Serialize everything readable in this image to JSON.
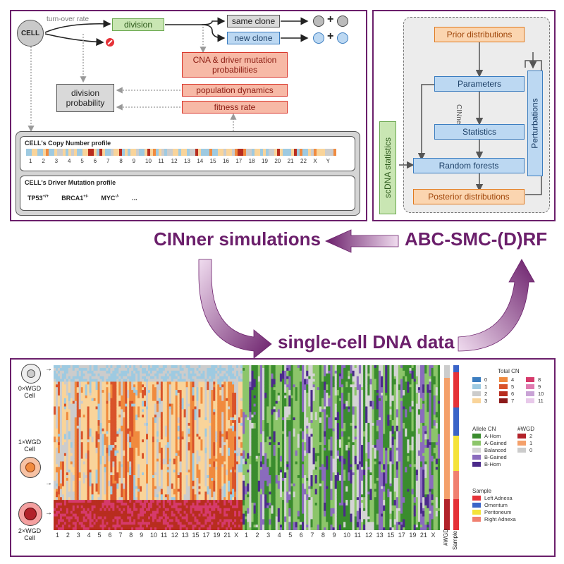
{
  "cinner_panel": {
    "cell_label": "CELL",
    "turnover_label": "turn-over rate",
    "division_label": "division",
    "same_clone_label": "same clone",
    "new_clone_label": "new clone",
    "plus_symbol": "+",
    "cna_label": "CNA & driver mutation probabilities",
    "population_label": "population dynamics",
    "fitness_label": "fitness rate",
    "division_probability_label": "division probability",
    "copy_number_title": "CELL's Copy Number profile",
    "chromosomes": [
      "1",
      "2",
      "3",
      "4",
      "5",
      "6",
      "7",
      "8",
      "9",
      "10",
      "11",
      "12",
      "13",
      "14",
      "15",
      "16",
      "17",
      "18",
      "19",
      "20",
      "21",
      "22",
      "X",
      "Y"
    ],
    "driver_title": "CELL's Driver Mutation profile",
    "driver_genes": [
      {
        "gene": "TP53",
        "sup": "+/+"
      },
      {
        "gene": "BRCA1",
        "sup": "+/-"
      },
      {
        "gene": "MYC",
        "sup": "-/-"
      }
    ],
    "ellipsis": "..."
  },
  "abc_panel": {
    "prior_label": "Prior distributions",
    "parameters_label": "Parameters",
    "cinner_vertical": "CINner",
    "statistics_label": "Statistics",
    "random_forests_label": "Random forests",
    "posterior_label": "Posterior distributions",
    "perturbations_label": "Perturbations",
    "scdna_label": "scDNA statistics"
  },
  "flow": {
    "cinner_simulations": "CINner simulations",
    "abc_smc": "ABC-SMC-(D)RF",
    "single_cell": "single-cell DNA data"
  },
  "heatmap_panel": {
    "cell_0": "0×WGD Cell",
    "cell_1": "1×WGD Cell",
    "cell_2": "2×WGD Cell",
    "chromosomes": [
      "1",
      "2",
      "3",
      "4",
      "5",
      "6",
      "7",
      "8",
      "9",
      "10",
      "11",
      "12",
      "13",
      "15",
      "17",
      "19",
      "21",
      "X"
    ],
    "wgd_axis": "#WGD",
    "sample_axis": "Sample",
    "legend_total_title": "Total CN",
    "total_cn": [
      {
        "label": "0",
        "color": "#3b7dc0"
      },
      {
        "label": "4",
        "color": "#f08a3e"
      },
      {
        "label": "8",
        "color": "#d63a6b"
      },
      {
        "label": "1",
        "color": "#9ecae1"
      },
      {
        "label": "5",
        "color": "#d9532a"
      },
      {
        "label": "9",
        "color": "#e07bb0"
      },
      {
        "label": "2",
        "color": "#cccccc"
      },
      {
        "label": "6",
        "color": "#b82d1f"
      },
      {
        "label": "10",
        "color": "#c9a3d6"
      },
      {
        "label": "3",
        "color": "#f9d49a"
      },
      {
        "label": "7",
        "color": "#8c1a1a"
      },
      {
        "label": "11",
        "color": "#e8c9ea"
      }
    ],
    "legend_allele_title": "Allele CN",
    "allele_cn": [
      {
        "label": "A-Hom",
        "color": "#3a8c2e"
      },
      {
        "label": "A-Gained",
        "color": "#8cc56a"
      },
      {
        "label": "Balanced",
        "color": "#d4d4d4"
      },
      {
        "label": "B-Gained",
        "color": "#8a6bbd"
      },
      {
        "label": "B-Hom",
        "color": "#4b2a8a"
      }
    ],
    "legend_wgd_title": "#WGD",
    "wgd": [
      {
        "label": "2",
        "color": "#b2222a"
      },
      {
        "label": "1",
        "color": "#f4a06a"
      },
      {
        "label": "0",
        "color": "#cccccc"
      }
    ],
    "legend_sample_title": "Sample",
    "samples": [
      {
        "label": "Left Adnexa",
        "color": "#e53238"
      },
      {
        "label": "Omentum",
        "color": "#3a64c8"
      },
      {
        "label": "Peritoneum",
        "color": "#f4e33a"
      },
      {
        "label": "Right Adnexa",
        "color": "#f08070"
      }
    ]
  },
  "colors": {
    "panel_border": "#6b1f6b",
    "arrow": "#6b1f6b"
  }
}
